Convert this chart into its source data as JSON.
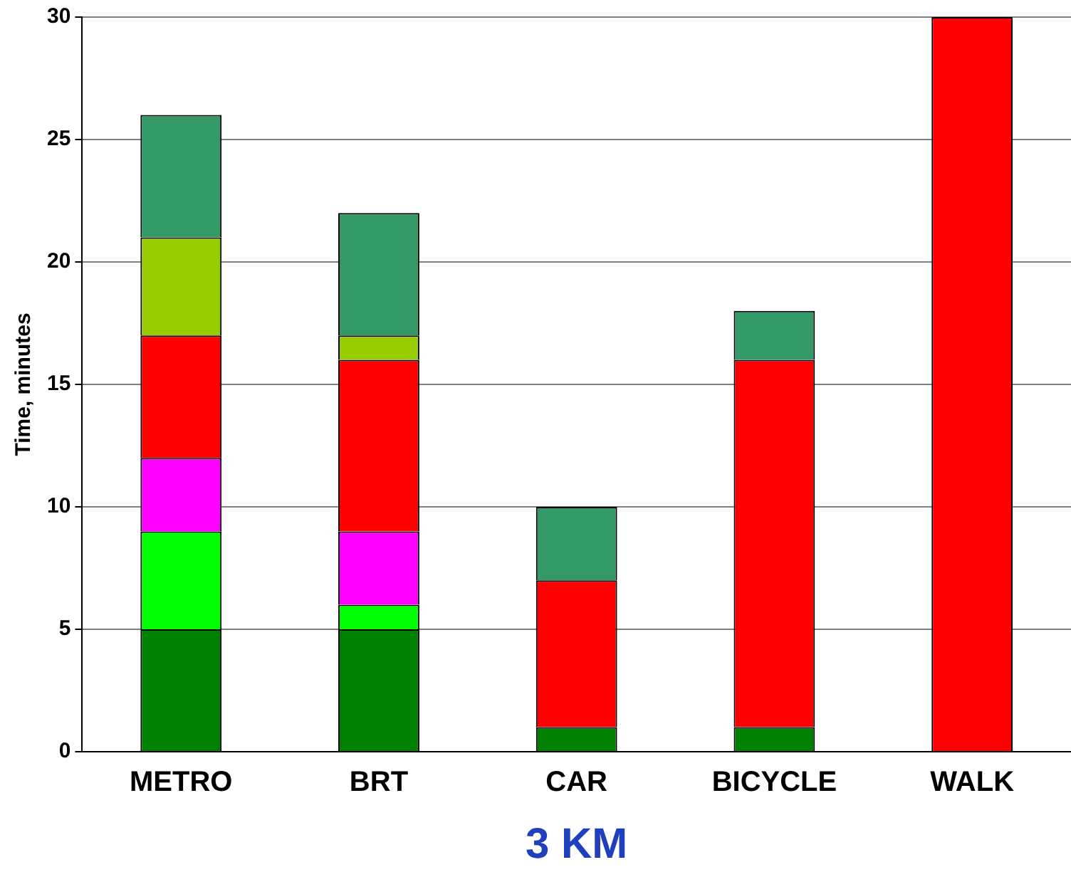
{
  "chart_data": {
    "type": "bar",
    "stacked": true,
    "xlabel": "3 KM",
    "ylabel": "Time, minutes",
    "categories": [
      "METRO",
      "BRT",
      "CAR",
      "BICYCLE",
      "WALK"
    ],
    "series": [
      {
        "color": "#008000",
        "values": [
          5,
          5,
          1,
          1,
          null
        ]
      },
      {
        "color": "#00ff00",
        "values": [
          4,
          1,
          null,
          null,
          null
        ]
      },
      {
        "color": "#ff00ff",
        "values": [
          3,
          3,
          null,
          null,
          null
        ]
      },
      {
        "color": "#ff0000",
        "values": [
          5,
          7,
          6,
          15,
          30
        ]
      },
      {
        "color": "#99cc00",
        "values": [
          4,
          1,
          null,
          null,
          null
        ]
      },
      {
        "color": "#339966",
        "values": [
          5,
          5,
          3,
          2,
          null
        ]
      }
    ],
    "ylim": [
      0,
      30
    ],
    "yticks": [
      0,
      5,
      10,
      15,
      20,
      25,
      30
    ],
    "grid": "y",
    "legend": false
  }
}
